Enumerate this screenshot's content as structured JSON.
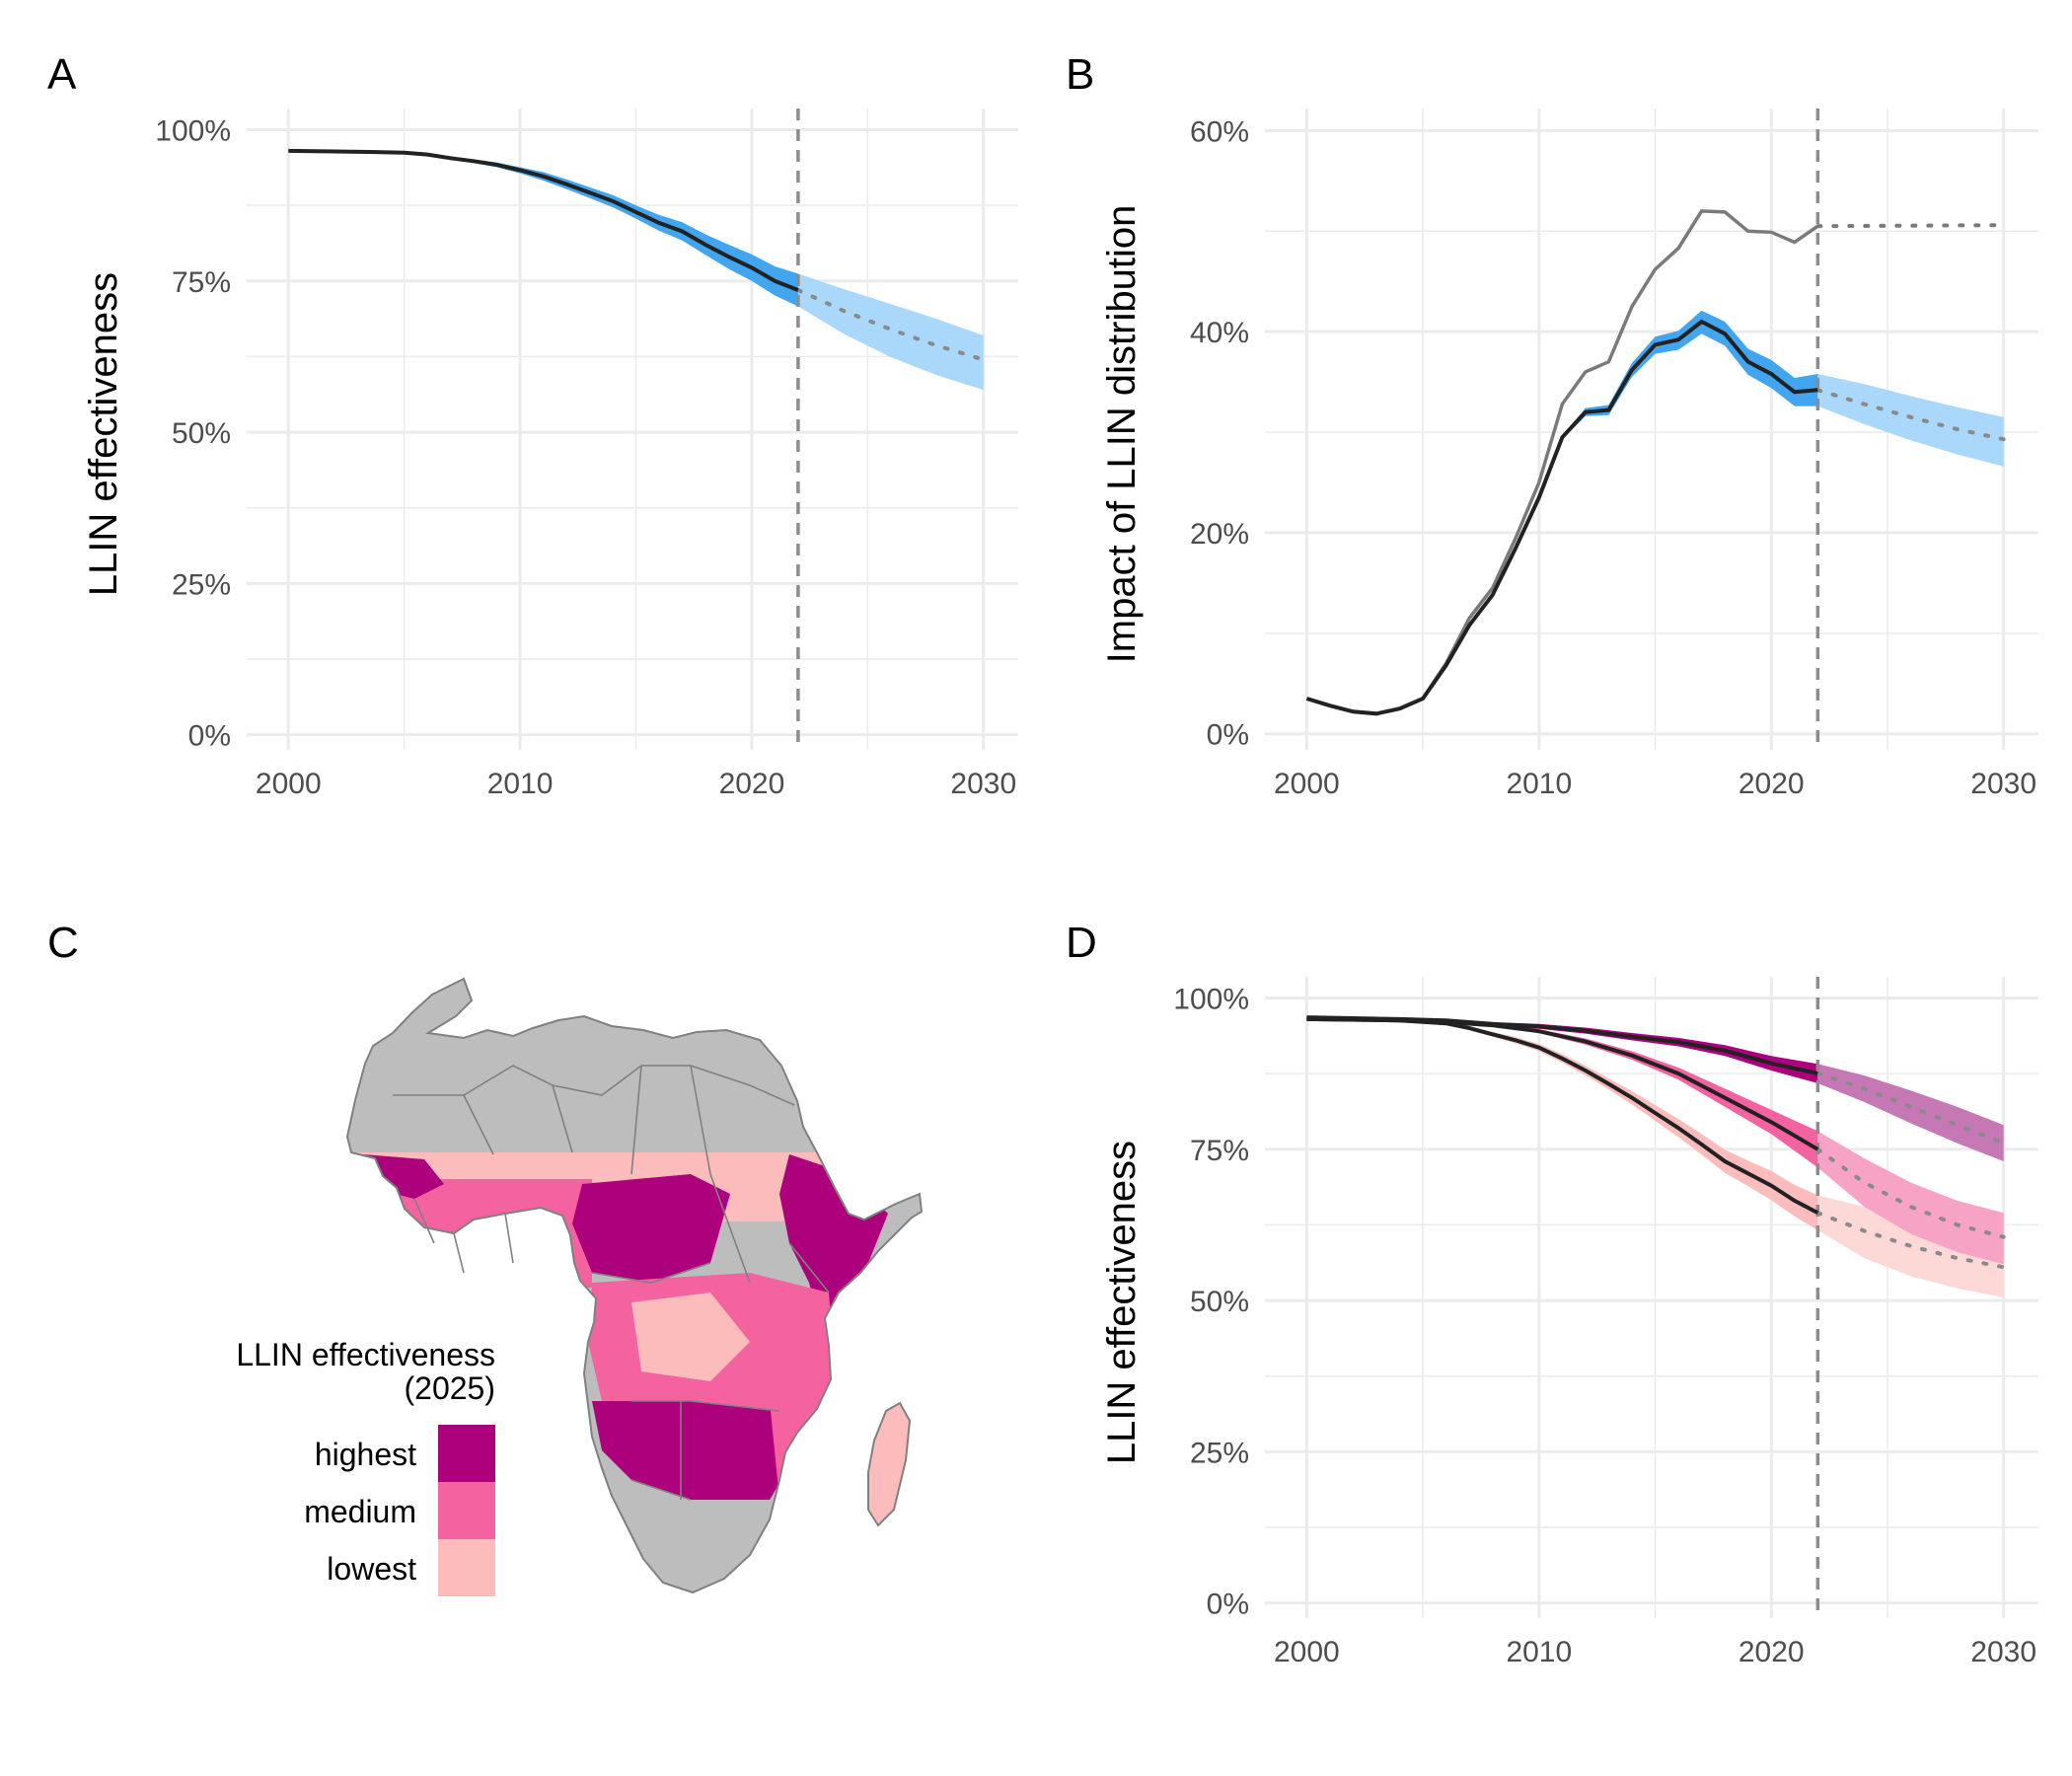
{
  "panel_labels": {
    "a": "A",
    "b": "B",
    "c": "C",
    "d": "D"
  },
  "colors": {
    "grid": "#ebebeb",
    "dash": "#8c8c8c",
    "line": "#222222",
    "blue_band_observed": "#42a5f0",
    "blue_band_projected": "#a9d8fa",
    "land": "#bdbdbd",
    "border": "#808080",
    "highest": "#ad007c",
    "medium": "#f562a0",
    "lowest": "#fcbcbc"
  },
  "chart_data": [
    {
      "panel": "A",
      "type": "line",
      "xlabel": "",
      "ylabel": "LLIN effectiveness",
      "xlim": [
        1998.2,
        2031.5
      ],
      "ylim": [
        -2.5,
        103.5
      ],
      "x_ticks": [
        2000,
        2010,
        2020,
        2030
      ],
      "x_tick_labels": [
        "2000",
        "2010",
        "2020",
        "2030"
      ],
      "y_ticks": [
        0,
        25,
        50,
        75,
        100
      ],
      "y_tick_labels": [
        "0%",
        "25%",
        "50%",
        "75%",
        "100%"
      ],
      "cutoff_year": 2022,
      "observed": {
        "x": [
          2000,
          2002,
          2004,
          2005,
          2006,
          2007,
          2008,
          2009,
          2010,
          2011,
          2012,
          2013,
          2014,
          2015,
          2016,
          2017,
          2018,
          2019,
          2020,
          2021,
          2022
        ],
        "y": [
          96.5,
          96.4,
          96.3,
          96.2,
          95.9,
          95.3,
          94.8,
          94.2,
          93.3,
          92.3,
          91.0,
          89.6,
          88.2,
          86.4,
          84.6,
          83.2,
          81.0,
          79.0,
          77.2,
          75.0,
          73.5
        ],
        "lower": [
          96.4,
          96.3,
          96.2,
          96.1,
          95.8,
          95.1,
          94.5,
          93.8,
          92.8,
          91.6,
          90.2,
          88.7,
          87.2,
          85.3,
          83.3,
          81.7,
          79.3,
          77.0,
          75.0,
          72.6,
          70.8
        ],
        "upper": [
          96.6,
          96.5,
          96.4,
          96.3,
          96.0,
          95.5,
          95.1,
          94.6,
          93.8,
          93.0,
          91.8,
          90.5,
          89.2,
          87.5,
          85.9,
          84.7,
          82.7,
          81.0,
          79.4,
          77.4,
          76.2
        ]
      },
      "projected": {
        "x": [
          2022,
          2024,
          2026,
          2028,
          2030
        ],
        "y": [
          73.5,
          70.0,
          67.0,
          64.3,
          62.0
        ],
        "lower": [
          70.8,
          66.2,
          62.4,
          59.4,
          57.0
        ],
        "upper": [
          76.2,
          73.6,
          71.2,
          68.7,
          66.0
        ]
      }
    },
    {
      "panel": "B",
      "type": "line",
      "xlabel": "",
      "ylabel": "Impact of LLIN distribution",
      "xlim": [
        1998.2,
        2031.5
      ],
      "ylim": [
        -1.6,
        62.2
      ],
      "x_ticks": [
        2000,
        2010,
        2020,
        2030
      ],
      "x_tick_labels": [
        "2000",
        "2010",
        "2020",
        "2030"
      ],
      "y_ticks": [
        0,
        20,
        40,
        60
      ],
      "y_tick_labels": [
        "0%",
        "20%",
        "40%",
        "60%"
      ],
      "cutoff_year": 2022,
      "without_resistance": {
        "x": [
          2000,
          2001,
          2002,
          2003,
          2004,
          2005,
          2006,
          2007,
          2008,
          2009,
          2010,
          2011,
          2012,
          2013,
          2014,
          2015,
          2016,
          2017,
          2018,
          2019,
          2020,
          2021,
          2022
        ],
        "y": [
          3.5,
          2.8,
          2.2,
          2.0,
          2.5,
          3.5,
          7.0,
          11.5,
          14.5,
          19.5,
          25.0,
          32.8,
          36.0,
          37.0,
          42.5,
          46.2,
          48.3,
          52.0,
          51.9,
          50.0,
          49.9,
          48.9,
          50.5
        ]
      },
      "without_resistance_projected": {
        "x": [
          2022,
          2030
        ],
        "y": [
          50.5,
          50.6
        ]
      },
      "observed": {
        "x": [
          2000,
          2001,
          2002,
          2003,
          2004,
          2005,
          2006,
          2007,
          2008,
          2009,
          2010,
          2011,
          2012,
          2013,
          2014,
          2015,
          2016,
          2017,
          2018,
          2019,
          2020,
          2021,
          2022
        ],
        "y": [
          3.5,
          2.8,
          2.2,
          2.0,
          2.5,
          3.5,
          6.8,
          10.8,
          13.8,
          18.5,
          23.5,
          29.5,
          32.0,
          32.2,
          36.2,
          38.7,
          39.2,
          41.0,
          39.8,
          37.0,
          35.8,
          34.0,
          34.2
        ],
        "lower": [
          3.5,
          2.8,
          2.2,
          2.0,
          2.5,
          3.5,
          6.8,
          10.8,
          13.8,
          18.5,
          23.5,
          29.3,
          31.6,
          31.7,
          35.5,
          37.8,
          38.2,
          39.8,
          38.6,
          35.7,
          34.4,
          32.6,
          32.6
        ],
        "upper": [
          3.5,
          2.8,
          2.2,
          2.0,
          2.5,
          3.5,
          6.8,
          10.8,
          13.8,
          18.5,
          23.5,
          29.7,
          32.4,
          32.7,
          36.9,
          39.5,
          40.1,
          42.1,
          41.0,
          38.3,
          37.2,
          35.4,
          35.8
        ]
      },
      "projected": {
        "x": [
          2022,
          2024,
          2026,
          2028,
          2030
        ],
        "y": [
          34.2,
          32.8,
          31.5,
          30.3,
          29.3
        ],
        "lower": [
          32.6,
          30.8,
          29.2,
          27.8,
          26.6
        ],
        "upper": [
          35.8,
          34.8,
          33.6,
          32.5,
          31.5
        ]
      }
    },
    {
      "panel": "D",
      "type": "line",
      "xlabel": "",
      "ylabel": "LLIN effectiveness",
      "xlim": [
        1998.2,
        2031.5
      ],
      "ylim": [
        -2.5,
        103.5
      ],
      "x_ticks": [
        2000,
        2010,
        2020,
        2030
      ],
      "x_tick_labels": [
        "2000",
        "2010",
        "2020",
        "2030"
      ],
      "y_ticks": [
        0,
        25,
        50,
        75,
        100
      ],
      "y_tick_labels": [
        "0%",
        "25%",
        "50%",
        "75%",
        "100%"
      ],
      "cutoff_year": 2022,
      "groups": [
        {
          "key": "highest",
          "observed": {
            "x": [
              2000,
              2004,
              2006,
              2008,
              2010,
              2012,
              2014,
              2016,
              2018,
              2020,
              2022
            ],
            "y": [
              96.8,
              96.5,
              96.3,
              95.7,
              95.3,
              94.6,
              93.6,
              92.7,
              91.3,
              89.2,
              87.5
            ],
            "lower": [
              96.7,
              96.4,
              96.1,
              95.4,
              94.9,
              94.1,
              93.0,
              92.0,
              90.4,
              88.0,
              85.9
            ],
            "upper": [
              96.9,
              96.6,
              96.5,
              96.0,
              95.7,
              95.1,
              94.2,
              93.4,
              92.2,
              90.4,
              89.1
            ]
          },
          "projected": {
            "x": [
              2022,
              2024,
              2026,
              2028,
              2030
            ],
            "y": [
              87.5,
              85.0,
              82.0,
              79.0,
              76.0
            ],
            "lower": [
              85.9,
              82.8,
              79.3,
              76.0,
              73.0
            ],
            "upper": [
              89.1,
              87.2,
              84.7,
              82.0,
              79.0
            ]
          }
        },
        {
          "key": "medium",
          "observed": {
            "x": [
              2000,
              2004,
              2006,
              2008,
              2010,
              2012,
              2014,
              2016,
              2018,
              2020,
              2022
            ],
            "y": [
              96.5,
              96.3,
              96.0,
              95.5,
              94.5,
              92.8,
              90.5,
              87.5,
              83.5,
              79.5,
              75.0
            ],
            "lower": [
              96.4,
              96.2,
              95.9,
              95.3,
              94.2,
              92.3,
              89.8,
              86.5,
              82.0,
              77.5,
              72.0
            ],
            "upper": [
              96.6,
              96.4,
              96.1,
              95.7,
              94.8,
              93.3,
              91.2,
              88.5,
              85.0,
              81.5,
              78.0
            ]
          },
          "projected": {
            "x": [
              2022,
              2024,
              2026,
              2028,
              2030
            ],
            "y": [
              75.0,
              69.5,
              65.5,
              62.5,
              60.5
            ],
            "lower": [
              72.0,
              65.5,
              61.0,
              58.0,
              56.0
            ],
            "upper": [
              78.0,
              73.5,
              69.5,
              66.5,
              64.5
            ]
          }
        },
        {
          "key": "lowest",
          "observed": {
            "x": [
              2000,
              2004,
              2006,
              2007,
              2008,
              2009,
              2010,
              2011,
              2012,
              2013,
              2014,
              2015,
              2016,
              2017,
              2018,
              2019,
              2020,
              2021,
              2022
            ],
            "y": [
              96.5,
              96.3,
              95.8,
              95.0,
              94.0,
              93.0,
              91.8,
              90.0,
              88.0,
              85.8,
              83.5,
              81.0,
              78.5,
              75.8,
              73.0,
              71.0,
              69.0,
              66.5,
              64.5
            ],
            "lower": [
              96.4,
              96.2,
              95.6,
              94.7,
              93.6,
              92.5,
              91.2,
              89.3,
              87.2,
              84.9,
              82.4,
              79.7,
              77.0,
              74.1,
              71.1,
              68.9,
              66.6,
              63.9,
              61.6
            ],
            "upper": [
              96.6,
              96.4,
              96.0,
              95.3,
              94.4,
              93.5,
              92.4,
              90.7,
              88.8,
              86.7,
              84.6,
              82.3,
              80.0,
              77.5,
              74.9,
              73.1,
              71.4,
              69.1,
              67.4
            ]
          },
          "projected": {
            "x": [
              2022,
              2024,
              2026,
              2028,
              2030
            ],
            "y": [
              64.5,
              61.5,
              59.0,
              57.0,
              55.5
            ],
            "lower": [
              61.6,
              57.0,
              54.0,
              52.0,
              50.5
            ],
            "upper": [
              67.4,
              65.5,
              63.5,
              61.5,
              60.0
            ]
          }
        }
      ]
    }
  ],
  "map": {
    "legend": {
      "title_line1": "LLIN effectiveness",
      "title_line2": "(2025)",
      "items": [
        {
          "key": "highest",
          "label": "highest"
        },
        {
          "key": "medium",
          "label": "medium"
        },
        {
          "key": "lowest",
          "label": "lowest"
        }
      ]
    }
  }
}
